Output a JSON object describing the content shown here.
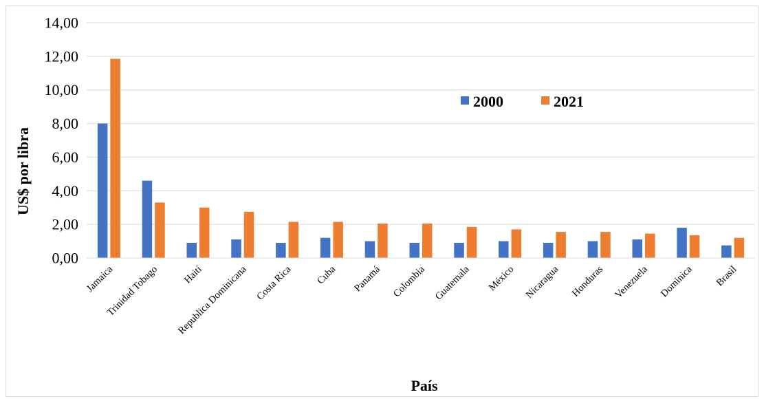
{
  "chart_data": {
    "type": "bar",
    "title": "",
    "xlabel": "País",
    "ylabel": "US$ por libra",
    "ylim": [
      0,
      14
    ],
    "yticks": [
      "0,00",
      "2,00",
      "4,00",
      "6,00",
      "8,00",
      "10,00",
      "12,00",
      "14,00"
    ],
    "grid": true,
    "legend_position": "top-right",
    "categories": [
      "Jamaica",
      "Trinidad Tobago",
      "Haití",
      "Republica Dominicana",
      "Costa Rica",
      "Cuba",
      "Panamá",
      "Colombia",
      "Guatemala",
      "México",
      "Nicaragua",
      "Honduras",
      "Venezuela",
      "Dominica",
      "Brasil"
    ],
    "series": [
      {
        "name": "2000",
        "color": "#4472c4",
        "values": [
          8.0,
          4.6,
          0.9,
          1.1,
          0.9,
          1.2,
          1.0,
          0.9,
          0.9,
          1.0,
          0.9,
          1.0,
          1.1,
          1.8,
          0.75
        ]
      },
      {
        "name": "2021",
        "color": "#ed7d31",
        "values": [
          11.85,
          3.3,
          3.0,
          2.75,
          2.15,
          2.15,
          2.05,
          2.05,
          1.85,
          1.7,
          1.55,
          1.55,
          1.45,
          1.35,
          1.2
        ]
      }
    ]
  }
}
